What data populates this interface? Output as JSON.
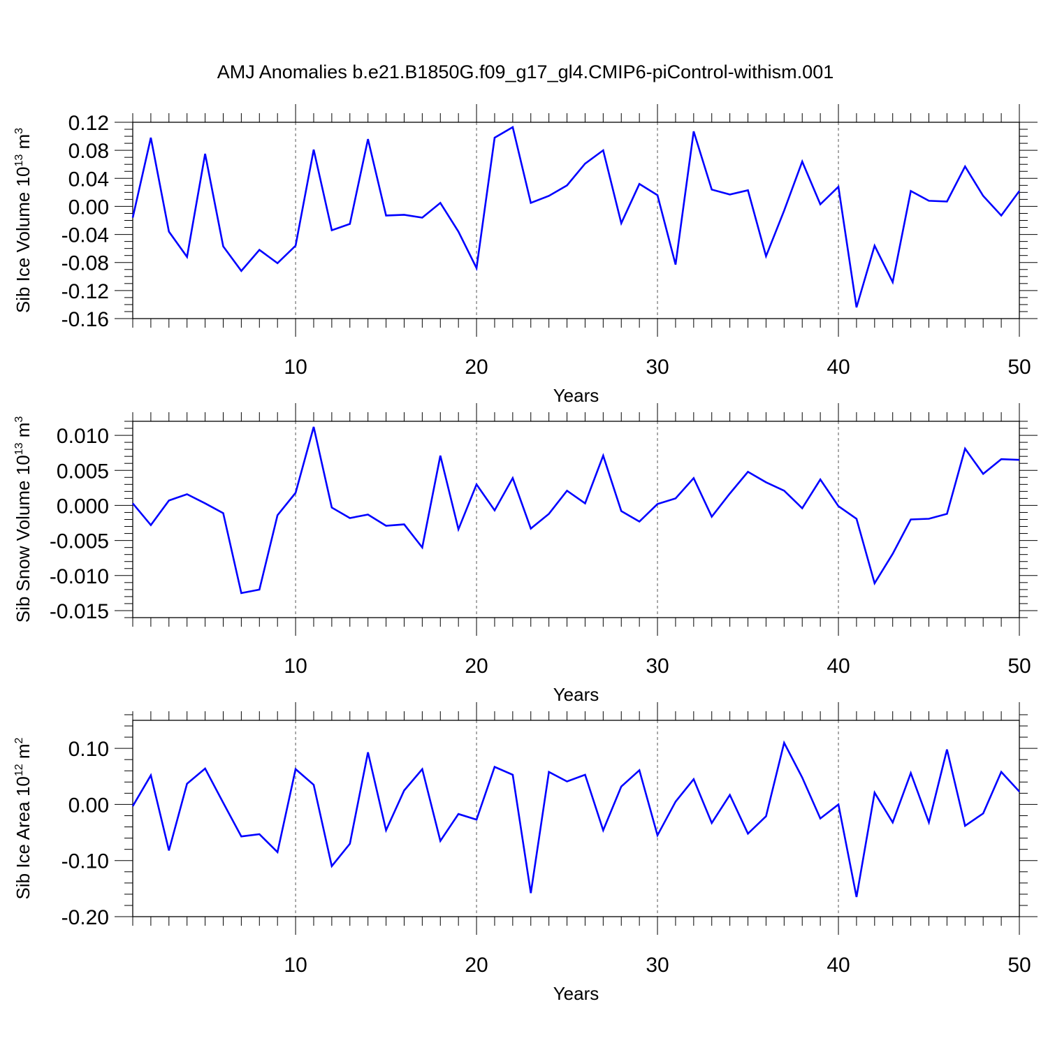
{
  "title": "AMJ Anomalies b.e21.B1850G.f09_g17_gl4.CMIP6-piControl-withism.001",
  "colors": {
    "line": "#0000ff",
    "axis": "#000000",
    "grid": "#555555"
  },
  "chart_data": [
    {
      "type": "line",
      "ylabel_main": "Sib Ice Volume 10",
      "ylabel_exp": "13",
      "ylabel_unit": " m",
      "ylabel_unit_exp": "3",
      "xlabel": "Years",
      "xlim": [
        1,
        50
      ],
      "ylim": [
        -0.16,
        0.12
      ],
      "yticks": [
        -0.16,
        -0.12,
        -0.08,
        -0.04,
        0.0,
        0.04,
        0.08,
        0.12
      ],
      "ytick_labels": [
        "-0.16",
        "-0.12",
        "-0.08",
        "-0.04",
        "0.00",
        "0.04",
        "0.08",
        "0.12"
      ],
      "y_minor_step": 0.01,
      "xticks": [
        10,
        20,
        30,
        40,
        50
      ],
      "xtick_labels": [
        "10",
        "20",
        "30",
        "40",
        "50"
      ],
      "grid": "vertical-dashed-at-major-x",
      "x": [
        1,
        2,
        3,
        4,
        5,
        6,
        7,
        8,
        9,
        10,
        11,
        12,
        13,
        14,
        15,
        16,
        17,
        18,
        19,
        20,
        21,
        22,
        23,
        24,
        25,
        26,
        27,
        28,
        29,
        30,
        31,
        32,
        33,
        34,
        35,
        36,
        37,
        38,
        39,
        40,
        41,
        42,
        43,
        44,
        45,
        46,
        47,
        48,
        49,
        50
      ],
      "values": [
        -0.016,
        0.098,
        -0.036,
        -0.072,
        0.075,
        -0.057,
        -0.092,
        -0.062,
        -0.081,
        -0.056,
        0.081,
        -0.034,
        -0.025,
        0.096,
        -0.013,
        -0.012,
        -0.016,
        0.005,
        -0.036,
        -0.088,
        0.098,
        0.113,
        0.005,
        0.015,
        0.03,
        0.061,
        0.08,
        -0.024,
        0.032,
        0.016,
        -0.083,
        0.107,
        0.024,
        0.017,
        0.023,
        -0.071,
        -0.006,
        0.064,
        0.003,
        0.028,
        -0.144,
        -0.056,
        -0.108,
        0.022,
        0.008,
        0.007,
        0.057,
        0.015,
        -0.013,
        0.022
      ]
    },
    {
      "type": "line",
      "ylabel_main": "Sib Snow Volume 10",
      "ylabel_exp": "13",
      "ylabel_unit": " m",
      "ylabel_unit_exp": "3",
      "xlabel": "Years",
      "xlim": [
        1,
        50
      ],
      "ylim": [
        -0.016,
        0.012
      ],
      "yticks": [
        -0.015,
        -0.01,
        -0.005,
        0.0,
        0.005,
        0.01
      ],
      "ytick_labels": [
        "-0.015",
        "-0.010",
        "-0.005",
        "0.000",
        "0.005",
        "0.010"
      ],
      "y_minor_step": 0.001,
      "xticks": [
        10,
        20,
        30,
        40,
        50
      ],
      "xtick_labels": [
        "10",
        "20",
        "30",
        "40",
        "50"
      ],
      "grid": "vertical-dashed-at-major-x",
      "x": [
        1,
        2,
        3,
        4,
        5,
        6,
        7,
        8,
        9,
        10,
        11,
        12,
        13,
        14,
        15,
        16,
        17,
        18,
        19,
        20,
        21,
        22,
        23,
        24,
        25,
        26,
        27,
        28,
        29,
        30,
        31,
        32,
        33,
        34,
        35,
        36,
        37,
        38,
        39,
        40,
        41,
        42,
        43,
        44,
        45,
        46,
        47,
        48,
        49,
        50
      ],
      "values": [
        0.0003,
        -0.0028,
        0.0007,
        0.0016,
        0.0003,
        -0.0011,
        -0.0125,
        -0.012,
        -0.0014,
        0.0018,
        0.0112,
        -0.0003,
        -0.0018,
        -0.0013,
        -0.0029,
        -0.0027,
        -0.006,
        0.0071,
        -0.0034,
        0.003,
        -0.0007,
        0.0039,
        -0.0033,
        -0.0012,
        0.0021,
        0.0003,
        0.0071,
        -0.0008,
        -0.0023,
        0.0002,
        0.001,
        0.0039,
        -0.0016,
        0.0017,
        0.0048,
        0.0033,
        0.0021,
        -0.0004,
        0.0037,
        -0.0001,
        -0.0019,
        -0.0111,
        -0.0069,
        -0.002,
        -0.0019,
        -0.0012,
        0.0081,
        0.0045,
        0.0066,
        0.0065
      ]
    },
    {
      "type": "line",
      "ylabel_main": "Sib Ice Area 10",
      "ylabel_exp": "12",
      "ylabel_unit": " m",
      "ylabel_unit_exp": "2",
      "xlabel": "Years",
      "xlim": [
        1,
        50
      ],
      "ylim": [
        -0.2,
        0.15
      ],
      "yticks": [
        -0.2,
        -0.1,
        0.0,
        0.1
      ],
      "ytick_labels": [
        "-0.20",
        "-0.10",
        "0.00",
        "0.10"
      ],
      "y_minor_step": 0.02,
      "xticks": [
        10,
        20,
        30,
        40,
        50
      ],
      "xtick_labels": [
        "10",
        "20",
        "30",
        "40",
        "50"
      ],
      "grid": "vertical-dashed-at-major-x",
      "x": [
        1,
        2,
        3,
        4,
        5,
        6,
        7,
        8,
        9,
        10,
        11,
        12,
        13,
        14,
        15,
        16,
        17,
        18,
        19,
        20,
        21,
        22,
        23,
        24,
        25,
        26,
        27,
        28,
        29,
        30,
        31,
        32,
        33,
        34,
        35,
        36,
        37,
        38,
        39,
        40,
        41,
        42,
        43,
        44,
        45,
        46,
        47,
        48,
        49,
        50
      ],
      "values": [
        -0.003,
        0.052,
        -0.082,
        0.037,
        0.064,
        0.003,
        -0.057,
        -0.053,
        -0.085,
        0.063,
        0.035,
        -0.11,
        -0.07,
        0.093,
        -0.046,
        0.025,
        0.063,
        -0.065,
        -0.017,
        -0.027,
        0.067,
        0.053,
        -0.158,
        0.058,
        0.041,
        0.053,
        -0.046,
        0.032,
        0.061,
        -0.055,
        0.005,
        0.045,
        -0.033,
        0.017,
        -0.052,
        -0.021,
        0.11,
        0.048,
        -0.025,
        0.0,
        -0.165,
        0.021,
        -0.032,
        0.056,
        -0.032,
        0.098,
        -0.038,
        -0.016,
        0.058,
        0.023
      ]
    }
  ]
}
